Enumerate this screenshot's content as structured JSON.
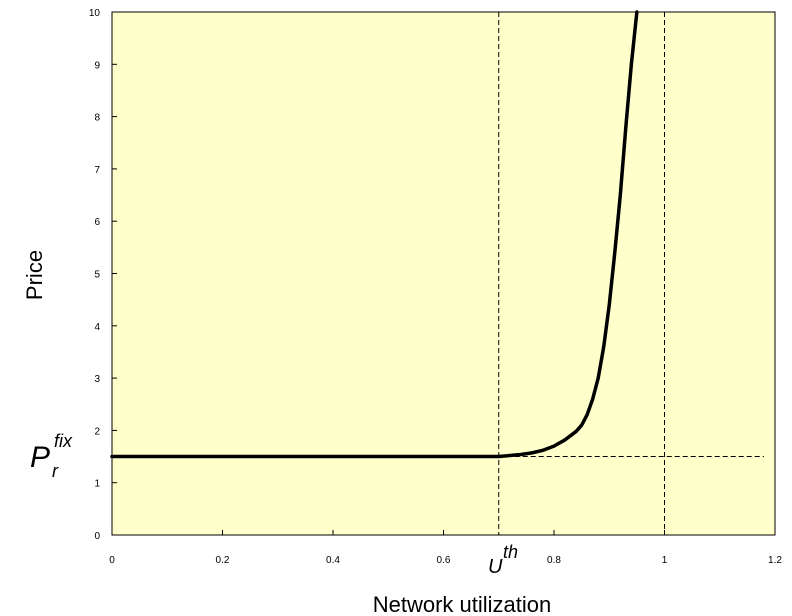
{
  "chart_data": {
    "type": "line",
    "xlabel": "Network utilization",
    "ylabel": "Price",
    "xlim": [
      0,
      1.2
    ],
    "ylim": [
      0,
      10
    ],
    "x_ticks": [
      "0",
      "0.2",
      "0.4",
      "0.6",
      "0.8",
      "1",
      "1.2"
    ],
    "y_ticks": [
      "0",
      "1",
      "2",
      "3",
      "4",
      "5",
      "6",
      "7",
      "8",
      "9",
      "10"
    ],
    "background_color": "#FFFFCC",
    "line_color": "#000000",
    "grid": false,
    "series": [
      {
        "x": [
          0,
          0.1,
          0.2,
          0.3,
          0.4,
          0.5,
          0.6,
          0.7,
          0.72,
          0.74,
          0.76,
          0.78,
          0.8,
          0.82,
          0.84,
          0.85,
          0.86,
          0.87,
          0.88,
          0.89,
          0.9,
          0.91,
          0.92,
          0.93,
          0.94,
          0.95
        ],
        "y": [
          1.5,
          1.5,
          1.5,
          1.5,
          1.5,
          1.5,
          1.5,
          1.5,
          1.52,
          1.54,
          1.57,
          1.62,
          1.7,
          1.82,
          1.98,
          2.1,
          2.3,
          2.6,
          3.0,
          3.6,
          4.4,
          5.4,
          6.5,
          7.8,
          9.0,
          10.0
        ]
      }
    ],
    "annotations": {
      "hline": {
        "y": 1.5,
        "x_start": 0.7,
        "x_end": 1.18,
        "style": "dashed"
      },
      "vlines": [
        {
          "x": 0.7,
          "style": "dashed"
        },
        {
          "x": 1.0,
          "style": "dashed"
        }
      ],
      "y_marker": {
        "main": "P",
        "sub": "r",
        "sup": "fix"
      },
      "x_marker": {
        "main": "U",
        "sup": "th"
      }
    }
  }
}
